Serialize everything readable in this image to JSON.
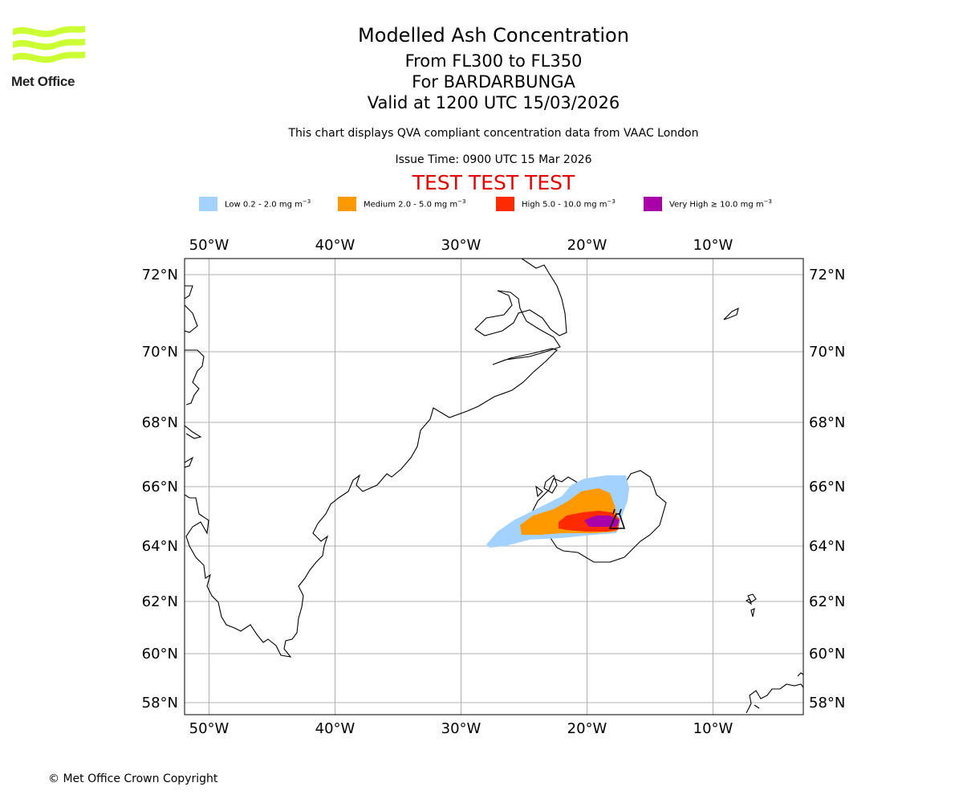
{
  "header": {
    "title": "Modelled Ash Concentration",
    "levels": "From FL300 to FL350",
    "volcano": "For BARDARBUNGA",
    "valid": "Valid at 1200 UTC 15/03/2026",
    "subtitle": "This chart displays QVA compliant concentration data from VAAC London",
    "issue_time": "Issue Time: 0900 UTC 15 Mar 2026",
    "test_banner": "TEST TEST TEST"
  },
  "logo": {
    "text": "Met Office",
    "icon": "met-office-wave-logo",
    "color": "#ccff33"
  },
  "legend": [
    {
      "label": "Low 0.2 - 2.0 mg m",
      "unit_sup": "−3",
      "color": "#a3d2ff"
    },
    {
      "label": "Medium 2.0 - 5.0 mg m",
      "unit_sup": "−3",
      "color": "#ff9900"
    },
    {
      "label": "High 5.0 - 10.0 mg m",
      "unit_sup": "−3",
      "color": "#ff2a00"
    },
    {
      "label": "Very High  ≥  10.0 mg m",
      "unit_sup": "−3",
      "color": "#aa00aa"
    }
  ],
  "map": {
    "lon_labels": [
      "50°W",
      "40°W",
      "30°W",
      "20°W",
      "10°W"
    ],
    "lon_values": [
      -50,
      -40,
      -30,
      -20,
      -10
    ],
    "lat_labels": [
      "72°N",
      "70°N",
      "68°N",
      "66°N",
      "64°N",
      "62°N",
      "60°N",
      "58°N"
    ],
    "lat_values": [
      72,
      70,
      68,
      66,
      64,
      62,
      60,
      58
    ],
    "volcano_marker": "volcano-icon"
  },
  "footer": {
    "copyright": "© Met Office Crown Copyright"
  }
}
